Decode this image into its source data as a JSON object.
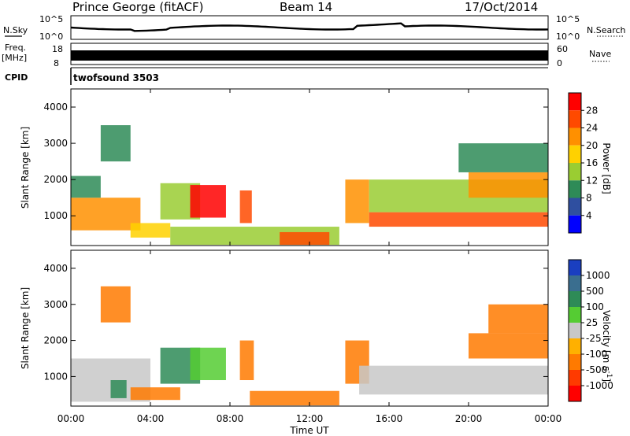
{
  "header": {
    "station": "Prince George (fitACF)",
    "beam": "Beam 14",
    "date": "17/Oct/2014"
  },
  "strip_labels": {
    "nsky": "N.Sky",
    "nsky_ticks": [
      "10^5",
      "10^0"
    ],
    "nsearch": "N.Search",
    "nsearch_ticks": [
      "10^5",
      "10^0"
    ],
    "freq": "Freq.",
    "freq_unit": "[MHz]",
    "freq_ticks": [
      "18",
      "8"
    ],
    "nave": "Nave",
    "nave_ticks": [
      "60",
      "0"
    ],
    "cpid": "CPID",
    "cpid_value": "twofsound 3503"
  },
  "axes": {
    "xlabel": "Time UT",
    "x_ticks": [
      "00:00",
      "04:00",
      "08:00",
      "12:00",
      "16:00",
      "20:00",
      "00:00"
    ],
    "ylabel_power": "Slant Range [km]",
    "ylabel_velocity": "Slant Range [km]",
    "y_ticks": [
      "4000",
      "3000",
      "2000",
      "1000"
    ]
  },
  "power_scale": {
    "title": "Power [dB]",
    "labels": [
      "28",
      "24",
      "20",
      "16",
      "12",
      "8",
      "4"
    ],
    "colors": [
      "#ff0000",
      "#ff4a00",
      "#ff9000",
      "#ffd100",
      "#9acd32",
      "#2e8b57",
      "#2f4fa0",
      "#0000ff"
    ]
  },
  "velocity_scale": {
    "title": "Velocity [m s",
    "unit_superscript": "-1",
    "unit_close": "]",
    "labels": [
      "1000",
      "500",
      "100",
      "25",
      "-25",
      "-100",
      "-500",
      "-1000"
    ],
    "colors": [
      "#1a3fc0",
      "#3a6e8f",
      "#2e8b57",
      "#55cc33",
      "#c8c8c8",
      "#ffb000",
      "#ff7a00",
      "#ff3a00",
      "#ff0000"
    ]
  },
  "chart_data": {
    "type": "heatmap",
    "x_range_hours": [
      0,
      24
    ],
    "y_range_km": [
      180,
      4500
    ],
    "panels": [
      {
        "name": "Power",
        "unit": "dB",
        "color_range": [
          0,
          30
        ],
        "regions": [
          {
            "t_start": 0.0,
            "t_end": 3.5,
            "range_start": 600,
            "range_end": 1500,
            "value": 20
          },
          {
            "t_start": 0.0,
            "t_end": 1.5,
            "range_start": 1500,
            "range_end": 2100,
            "value": 10
          },
          {
            "t_start": 1.5,
            "t_end": 3.0,
            "range_start": 2500,
            "range_end": 3500,
            "value": 8
          },
          {
            "t_start": 3.0,
            "t_end": 5.0,
            "range_start": 400,
            "range_end": 800,
            "value": 16
          },
          {
            "t_start": 4.5,
            "t_end": 6.5,
            "range_start": 900,
            "range_end": 1900,
            "value": 12
          },
          {
            "t_start": 6.0,
            "t_end": 7.8,
            "range_start": 950,
            "range_end": 1850,
            "value": 28
          },
          {
            "t_start": 8.5,
            "t_end": 9.1,
            "range_start": 800,
            "range_end": 1700,
            "value": 24
          },
          {
            "t_start": 5.0,
            "t_end": 13.5,
            "range_start": 200,
            "range_end": 700,
            "value": 14
          },
          {
            "t_start": 10.5,
            "t_end": 13.0,
            "range_start": 200,
            "range_end": 550,
            "value": 24
          },
          {
            "t_start": 13.8,
            "t_end": 15.0,
            "range_start": 800,
            "range_end": 2000,
            "value": 20
          },
          {
            "t_start": 15.0,
            "t_end": 24.0,
            "range_start": 700,
            "range_end": 1100,
            "value": 26
          },
          {
            "t_start": 15.0,
            "t_end": 24.0,
            "range_start": 1100,
            "range_end": 2000,
            "value": 12
          },
          {
            "t_start": 20.0,
            "t_end": 24.0,
            "range_start": 1500,
            "range_end": 2200,
            "value": 20
          },
          {
            "t_start": 19.5,
            "t_end": 24.0,
            "range_start": 2200,
            "range_end": 3000,
            "value": 8
          }
        ]
      },
      {
        "name": "Velocity",
        "unit": "m s-1",
        "color_range": [
          -1000,
          1000
        ],
        "regions": [
          {
            "t_start": 0.0,
            "t_end": 4.0,
            "range_start": 300,
            "range_end": 1500,
            "value": 0
          },
          {
            "t_start": 2.0,
            "t_end": 2.8,
            "range_start": 400,
            "range_end": 900,
            "value": 150
          },
          {
            "t_start": 1.5,
            "t_end": 3.0,
            "range_start": 2500,
            "range_end": 3500,
            "value": -300
          },
          {
            "t_start": 3.0,
            "t_end": 5.5,
            "range_start": 350,
            "range_end": 700,
            "value": -150
          },
          {
            "t_start": 4.5,
            "t_end": 6.5,
            "range_start": 800,
            "range_end": 1800,
            "value": 150
          },
          {
            "t_start": 6.0,
            "t_end": 7.8,
            "range_start": 900,
            "range_end": 1800,
            "value": 60
          },
          {
            "t_start": 8.5,
            "t_end": 9.2,
            "range_start": 900,
            "range_end": 2000,
            "value": -200
          },
          {
            "t_start": 9.0,
            "t_end": 13.5,
            "range_start": 200,
            "range_end": 600,
            "value": -120
          },
          {
            "t_start": 13.8,
            "t_end": 15.0,
            "range_start": 800,
            "range_end": 2000,
            "value": -300
          },
          {
            "t_start": 14.5,
            "t_end": 24.0,
            "range_start": 500,
            "range_end": 1300,
            "value": 0
          },
          {
            "t_start": 20.0,
            "t_end": 24.0,
            "range_start": 1500,
            "range_end": 2200,
            "value": -300
          },
          {
            "t_start": 21.0,
            "t_end": 24.0,
            "range_start": 2200,
            "range_end": 3000,
            "value": -500
          }
        ]
      }
    ]
  }
}
